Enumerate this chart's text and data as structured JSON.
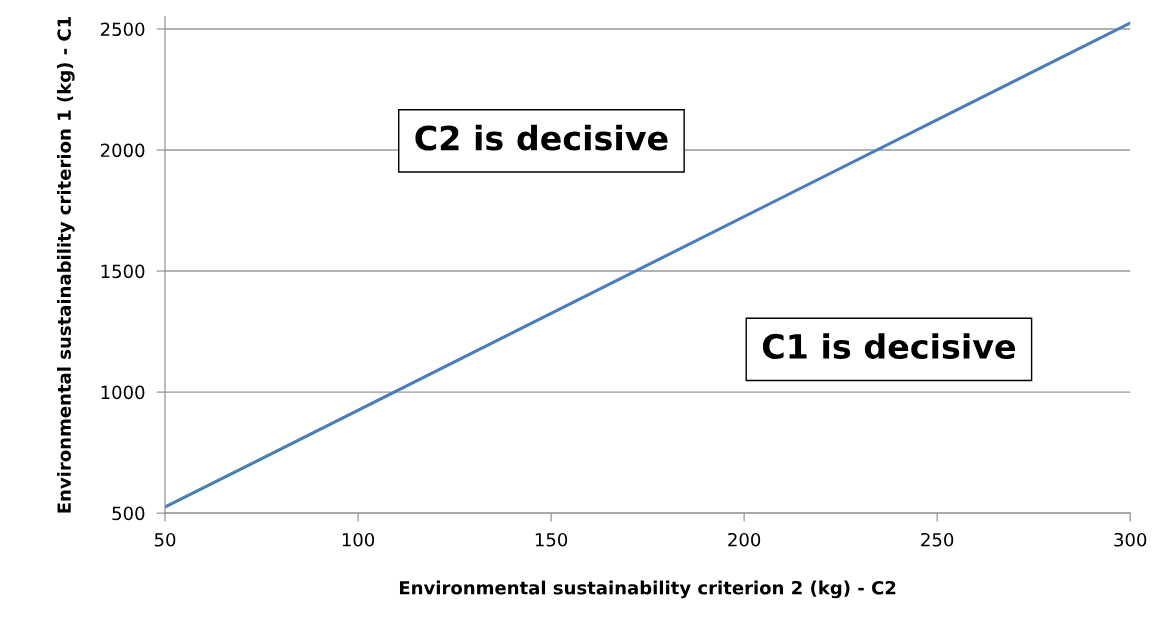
{
  "chart_data": {
    "type": "line",
    "xlabel": "Environmental sustainability criterion 2 (kg) - C2",
    "ylabel": "Environmental sustainability criterion 1 (kg) - C1",
    "x": [
      50,
      300
    ],
    "series": [
      {
        "color": "#4a7ebb",
        "values": [
          525,
          2525
        ]
      }
    ],
    "xlim": [
      50,
      300
    ],
    "xticks": [
      50,
      100,
      150,
      200,
      250,
      300
    ],
    "ylim": [
      500,
      2550
    ],
    "yticks": [
      500,
      1000,
      1500,
      2000,
      2500
    ],
    "grid": "y",
    "marker": "none",
    "line_style": "solid",
    "annotations": [
      "C2 is decisive",
      "C1 is decisive"
    ]
  }
}
